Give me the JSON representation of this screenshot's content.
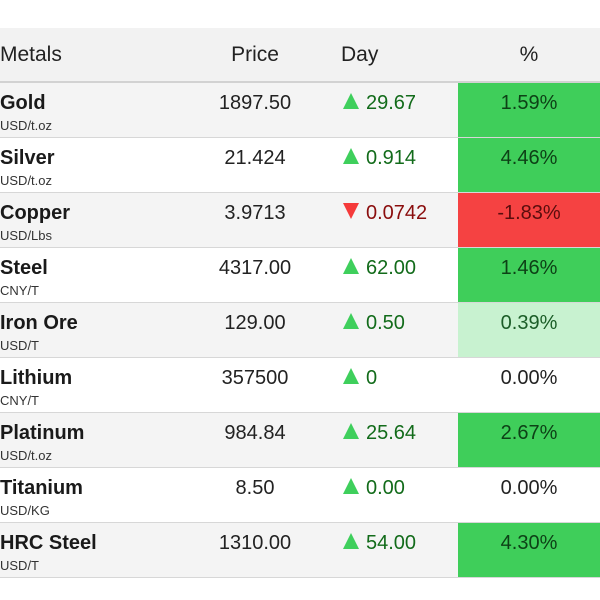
{
  "columns": {
    "metals": "Metals",
    "price": "Price",
    "day": "Day",
    "percent": "%"
  },
  "colors": {
    "up_arrow": "#3fcf5c",
    "down_arrow": "#f53a3a",
    "strong_gain_bg": "#3fce5a",
    "weak_gain_bg": "#c8f2d0",
    "loss_bg": "#f54242"
  },
  "rows": [
    {
      "name": "Gold",
      "unit": "USD/t.oz",
      "price": "1897.50",
      "direction": "up",
      "day": "29.67",
      "percent": "1.59%",
      "highlight": "green"
    },
    {
      "name": "Silver",
      "unit": "USD/t.oz",
      "price": "21.424",
      "direction": "up",
      "day": "0.914",
      "percent": "4.46%",
      "highlight": "green"
    },
    {
      "name": "Copper",
      "unit": "USD/Lbs",
      "price": "3.9713",
      "direction": "down",
      "day": "0.0742",
      "percent": "-1.83%",
      "highlight": "red"
    },
    {
      "name": "Steel",
      "unit": "CNY/T",
      "price": "4317.00",
      "direction": "up",
      "day": "62.00",
      "percent": "1.46%",
      "highlight": "green"
    },
    {
      "name": "Iron Ore",
      "unit": "USD/T",
      "price": "129.00",
      "direction": "up",
      "day": "0.50",
      "percent": "0.39%",
      "highlight": "light"
    },
    {
      "name": "Lithium",
      "unit": "CNY/T",
      "price": "357500",
      "direction": "up",
      "day": "0",
      "percent": "0.00%",
      "highlight": "none"
    },
    {
      "name": "Platinum",
      "unit": "USD/t.oz",
      "price": "984.84",
      "direction": "up",
      "day": "25.64",
      "percent": "2.67%",
      "highlight": "green"
    },
    {
      "name": "Titanium",
      "unit": "USD/KG",
      "price": "8.50",
      "direction": "up",
      "day": "0.00",
      "percent": "0.00%",
      "highlight": "none"
    },
    {
      "name": "HRC Steel",
      "unit": "USD/T",
      "price": "1310.00",
      "direction": "up",
      "day": "54.00",
      "percent": "4.30%",
      "highlight": "green"
    }
  ]
}
